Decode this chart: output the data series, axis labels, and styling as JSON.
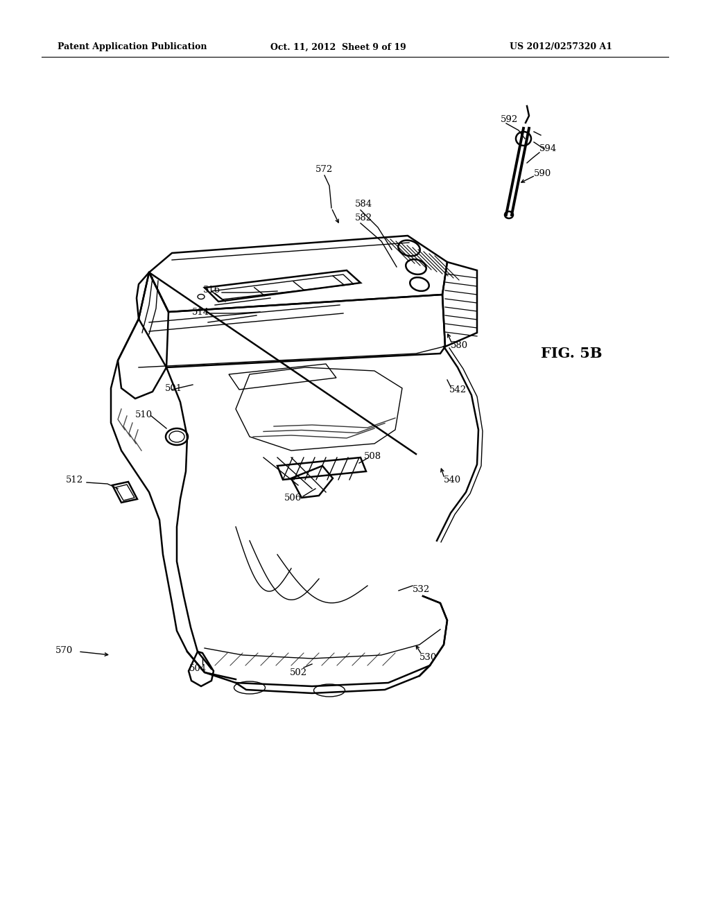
{
  "bg_color": "#ffffff",
  "line_color": "#000000",
  "header_left": "Patent Application Publication",
  "header_center": "Oct. 11, 2012  Sheet 9 of 19",
  "header_right": "US 2012/0257320 A1",
  "fig_label": "FIG. 5B",
  "lw_main": 1.8,
  "lw_thin": 1.0,
  "lw_thick": 2.5
}
